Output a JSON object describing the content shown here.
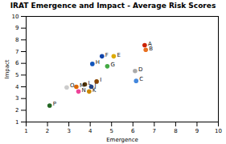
{
  "chart_data": {
    "type": "scatter",
    "title": "IRAT Emergence and Impact - Average Risk Scores",
    "xlabel": "Emergence",
    "ylabel": "Impact",
    "labels": [
      "A",
      "B",
      "C",
      "D",
      "E",
      "F",
      "G",
      "H",
      "I",
      "J",
      "K",
      "L",
      "M",
      "N",
      "O",
      "P"
    ],
    "x": [
      6.55,
      6.6,
      6.15,
      6.1,
      5.1,
      4.55,
      4.8,
      4.1,
      4.3,
      4.05,
      3.95,
      3.75,
      3.35,
      3.45,
      2.9,
      2.1
    ],
    "values": [
      7.55,
      7.15,
      4.5,
      5.35,
      6.6,
      6.6,
      5.75,
      5.95,
      4.45,
      4.0,
      3.6,
      4.2,
      4.0,
      3.6,
      3.95,
      2.4
    ],
    "colors": [
      "#cc2200",
      "#e87020",
      "#4488dd",
      "#aaaaaa",
      "#ddaa00",
      "#1144aa",
      "#44aa44",
      "#1155bb",
      "#884400",
      "#224488",
      "#cc8800",
      "#553300",
      "#dd6600",
      "#ee4499",
      "#cccccc",
      "#226622"
    ],
    "xlim": [
      1,
      10
    ],
    "ylim": [
      1,
      10
    ],
    "xticks": [
      1,
      2,
      3,
      4,
      5,
      6,
      7,
      8,
      9,
      10
    ],
    "yticks": [
      1,
      2,
      3,
      4,
      5,
      6,
      7,
      8,
      9,
      10
    ],
    "grid": false
  }
}
